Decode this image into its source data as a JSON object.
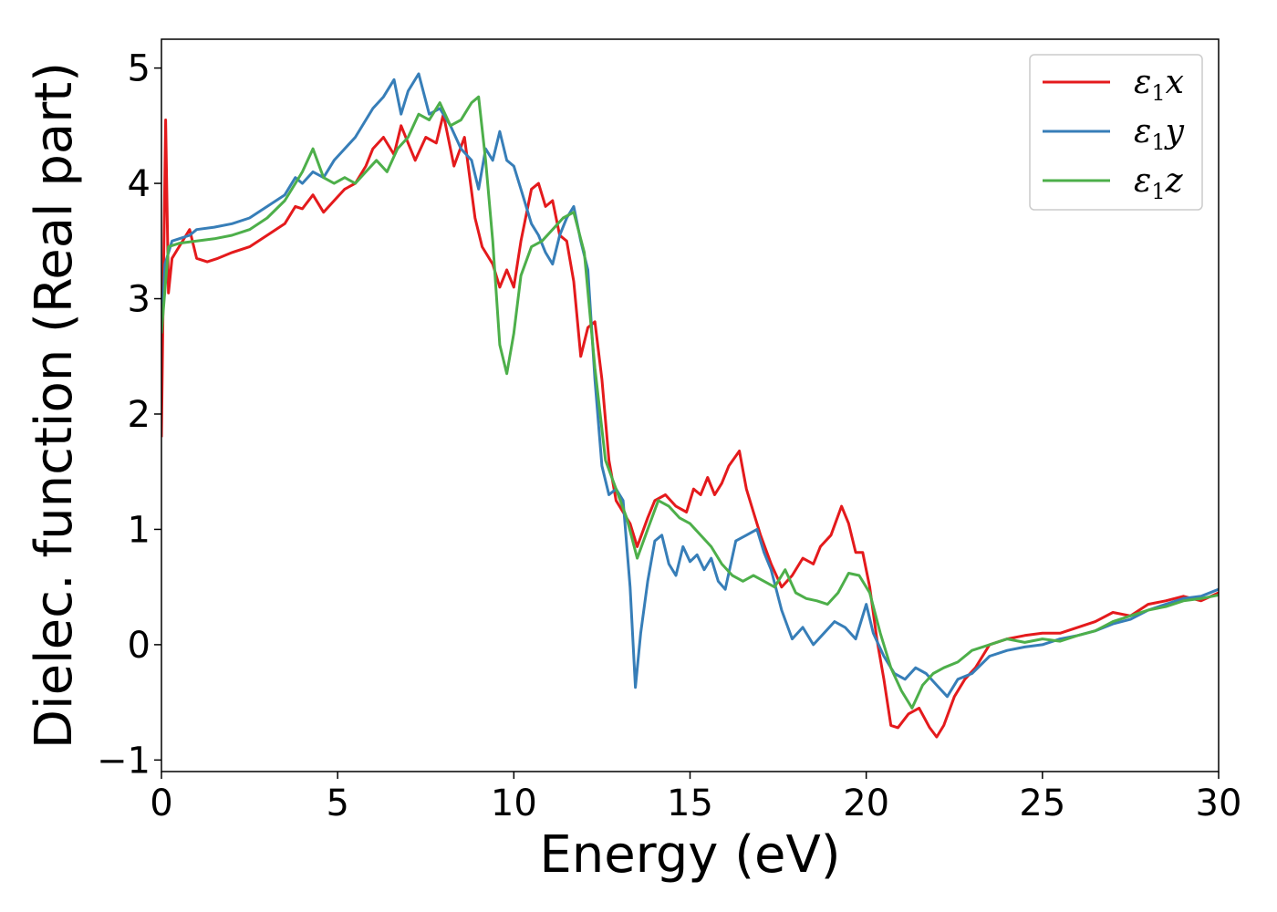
{
  "chart_data": {
    "type": "line",
    "xlabel": "Energy (eV)",
    "ylabel": "Dielec. function (Real part)",
    "xlim": [
      0,
      30
    ],
    "ylim": [
      -1.1,
      5.25
    ],
    "xticks": [
      0,
      5,
      10,
      15,
      20,
      25,
      30
    ],
    "yticks": [
      -1,
      0,
      1,
      2,
      3,
      4,
      5
    ],
    "grid": false,
    "legend_position": "top-right",
    "series": [
      {
        "name": "ε1x",
        "legend_main": "ε",
        "legend_sub": "1",
        "legend_tail": "x",
        "color": "#e41a1c",
        "x": [
          0,
          0.05,
          0.12,
          0.2,
          0.3,
          0.5,
          0.7,
          0.8,
          1.0,
          1.3,
          1.6,
          2.0,
          2.5,
          3.0,
          3.5,
          3.8,
          4.0,
          4.3,
          4.6,
          4.9,
          5.2,
          5.5,
          5.8,
          6.0,
          6.3,
          6.6,
          6.8,
          7.0,
          7.2,
          7.5,
          7.8,
          8.0,
          8.3,
          8.6,
          8.9,
          9.1,
          9.4,
          9.6,
          9.8,
          10.0,
          10.2,
          10.5,
          10.7,
          10.9,
          11.1,
          11.3,
          11.5,
          11.7,
          11.9,
          12.1,
          12.3,
          12.5,
          12.7,
          12.9,
          13.1,
          13.3,
          13.5,
          13.8,
          14.0,
          14.3,
          14.6,
          14.9,
          15.1,
          15.3,
          15.5,
          15.7,
          15.9,
          16.1,
          16.4,
          16.6,
          16.8,
          17.0,
          17.3,
          17.6,
          17.9,
          18.2,
          18.5,
          18.7,
          19.0,
          19.3,
          19.5,
          19.7,
          19.9,
          20.1,
          20.3,
          20.5,
          20.7,
          20.9,
          21.2,
          21.5,
          21.8,
          22.0,
          22.2,
          22.5,
          22.8,
          23.1,
          23.5,
          24.0,
          24.5,
          25.0,
          25.5,
          26.0,
          26.5,
          27.0,
          27.5,
          28.0,
          28.5,
          29.0,
          29.5,
          30.0
        ],
        "y": [
          1.8,
          3.0,
          4.55,
          3.05,
          3.35,
          3.45,
          3.55,
          3.6,
          3.35,
          3.32,
          3.35,
          3.4,
          3.45,
          3.55,
          3.65,
          3.8,
          3.78,
          3.9,
          3.75,
          3.85,
          3.95,
          4.0,
          4.15,
          4.3,
          4.4,
          4.25,
          4.5,
          4.35,
          4.2,
          4.4,
          4.35,
          4.6,
          4.15,
          4.4,
          3.7,
          3.45,
          3.3,
          3.1,
          3.25,
          3.1,
          3.5,
          3.95,
          4.0,
          3.8,
          3.85,
          3.55,
          3.5,
          3.15,
          2.5,
          2.75,
          2.8,
          2.3,
          1.6,
          1.25,
          1.15,
          1.05,
          0.85,
          1.1,
          1.25,
          1.3,
          1.2,
          1.15,
          1.35,
          1.3,
          1.45,
          1.3,
          1.4,
          1.55,
          1.68,
          1.35,
          1.15,
          0.95,
          0.7,
          0.5,
          0.6,
          0.75,
          0.7,
          0.85,
          0.95,
          1.2,
          1.05,
          0.8,
          0.8,
          0.5,
          0.05,
          -0.3,
          -0.7,
          -0.72,
          -0.6,
          -0.55,
          -0.72,
          -0.8,
          -0.7,
          -0.45,
          -0.3,
          -0.2,
          0.0,
          0.05,
          0.08,
          0.1,
          0.1,
          0.15,
          0.2,
          0.28,
          0.25,
          0.35,
          0.38,
          0.42,
          0.38,
          0.45
        ]
      },
      {
        "name": "ε1y",
        "legend_main": "ε",
        "legend_sub": "1",
        "legend_tail": "y",
        "color": "#377eb8",
        "x": [
          0,
          0.1,
          0.3,
          0.5,
          0.8,
          1.0,
          1.5,
          2.0,
          2.5,
          3.0,
          3.5,
          3.8,
          4.0,
          4.3,
          4.6,
          4.9,
          5.2,
          5.5,
          5.8,
          6.0,
          6.3,
          6.6,
          6.8,
          7.0,
          7.3,
          7.6,
          7.9,
          8.2,
          8.5,
          8.8,
          9.0,
          9.2,
          9.4,
          9.6,
          9.8,
          10.0,
          10.2,
          10.5,
          10.7,
          10.9,
          11.1,
          11.3,
          11.5,
          11.7,
          11.9,
          12.1,
          12.3,
          12.5,
          12.7,
          12.9,
          13.1,
          13.3,
          13.45,
          13.6,
          13.8,
          14.0,
          14.2,
          14.4,
          14.6,
          14.8,
          15.0,
          15.2,
          15.4,
          15.6,
          15.8,
          16.0,
          16.3,
          16.6,
          16.9,
          17.1,
          17.3,
          17.6,
          17.9,
          18.2,
          18.5,
          18.8,
          19.1,
          19.4,
          19.7,
          20.0,
          20.2,
          20.5,
          20.8,
          21.1,
          21.4,
          21.7,
          22.0,
          22.3,
          22.6,
          23.0,
          23.5,
          24.0,
          24.5,
          25.0,
          25.5,
          26.0,
          26.5,
          27.0,
          27.5,
          28.0,
          28.5,
          29.0,
          29.5,
          30.0
        ],
        "y": [
          2.7,
          3.3,
          3.5,
          3.52,
          3.55,
          3.6,
          3.62,
          3.65,
          3.7,
          3.8,
          3.9,
          4.05,
          4.0,
          4.1,
          4.05,
          4.2,
          4.3,
          4.4,
          4.55,
          4.65,
          4.75,
          4.9,
          4.6,
          4.8,
          4.95,
          4.6,
          4.65,
          4.5,
          4.3,
          4.2,
          3.95,
          4.3,
          4.2,
          4.45,
          4.2,
          4.15,
          3.95,
          3.65,
          3.55,
          3.4,
          3.3,
          3.55,
          3.7,
          3.8,
          3.5,
          3.25,
          2.3,
          1.55,
          1.3,
          1.35,
          1.25,
          0.5,
          -0.37,
          0.1,
          0.55,
          0.9,
          0.95,
          0.7,
          0.6,
          0.85,
          0.72,
          0.78,
          0.65,
          0.75,
          0.55,
          0.48,
          0.9,
          0.95,
          1.0,
          0.8,
          0.65,
          0.3,
          0.05,
          0.15,
          0.0,
          0.1,
          0.2,
          0.15,
          0.05,
          0.35,
          0.1,
          -0.1,
          -0.25,
          -0.3,
          -0.2,
          -0.25,
          -0.35,
          -0.45,
          -0.3,
          -0.25,
          -0.1,
          -0.05,
          -0.02,
          0.0,
          0.05,
          0.08,
          0.12,
          0.18,
          0.22,
          0.3,
          0.35,
          0.4,
          0.42,
          0.48
        ]
      },
      {
        "name": "ε1z",
        "legend_main": "ε",
        "legend_sub": "1",
        "legend_tail": "z",
        "color": "#4daf4a",
        "x": [
          0,
          0.2,
          0.5,
          1.0,
          1.5,
          2.0,
          2.5,
          3.0,
          3.5,
          3.8,
          4.0,
          4.3,
          4.6,
          4.9,
          5.2,
          5.5,
          5.8,
          6.1,
          6.4,
          6.7,
          7.0,
          7.3,
          7.6,
          7.9,
          8.2,
          8.5,
          8.8,
          9.0,
          9.2,
          9.4,
          9.6,
          9.8,
          10.0,
          10.2,
          10.5,
          10.8,
          11.1,
          11.4,
          11.7,
          12.0,
          12.3,
          12.6,
          12.9,
          13.2,
          13.5,
          13.8,
          14.1,
          14.4,
          14.7,
          15.0,
          15.3,
          15.6,
          15.9,
          16.2,
          16.5,
          16.8,
          17.1,
          17.4,
          17.7,
          18.0,
          18.3,
          18.6,
          18.9,
          19.2,
          19.5,
          19.8,
          20.1,
          20.4,
          20.7,
          21.0,
          21.3,
          21.6,
          21.9,
          22.2,
          22.6,
          23.0,
          23.5,
          24.0,
          24.5,
          25.0,
          25.5,
          26.0,
          26.5,
          27.0,
          27.5,
          28.0,
          28.5,
          29.0,
          29.5,
          30.0
        ],
        "y": [
          2.7,
          3.45,
          3.48,
          3.5,
          3.52,
          3.55,
          3.6,
          3.7,
          3.85,
          4.0,
          4.1,
          4.3,
          4.05,
          4.0,
          4.05,
          4.0,
          4.1,
          4.2,
          4.1,
          4.3,
          4.4,
          4.6,
          4.55,
          4.7,
          4.5,
          4.55,
          4.7,
          4.75,
          4.2,
          3.5,
          2.6,
          2.35,
          2.7,
          3.2,
          3.45,
          3.5,
          3.6,
          3.7,
          3.75,
          3.4,
          2.4,
          1.6,
          1.35,
          1.1,
          0.75,
          1.0,
          1.25,
          1.2,
          1.1,
          1.05,
          0.95,
          0.85,
          0.7,
          0.6,
          0.55,
          0.6,
          0.55,
          0.5,
          0.65,
          0.45,
          0.4,
          0.38,
          0.35,
          0.45,
          0.62,
          0.6,
          0.45,
          0.1,
          -0.2,
          -0.4,
          -0.55,
          -0.35,
          -0.25,
          -0.2,
          -0.15,
          -0.05,
          0.0,
          0.05,
          0.02,
          0.05,
          0.03,
          0.08,
          0.12,
          0.2,
          0.25,
          0.3,
          0.33,
          0.38,
          0.4,
          0.43
        ]
      }
    ]
  }
}
